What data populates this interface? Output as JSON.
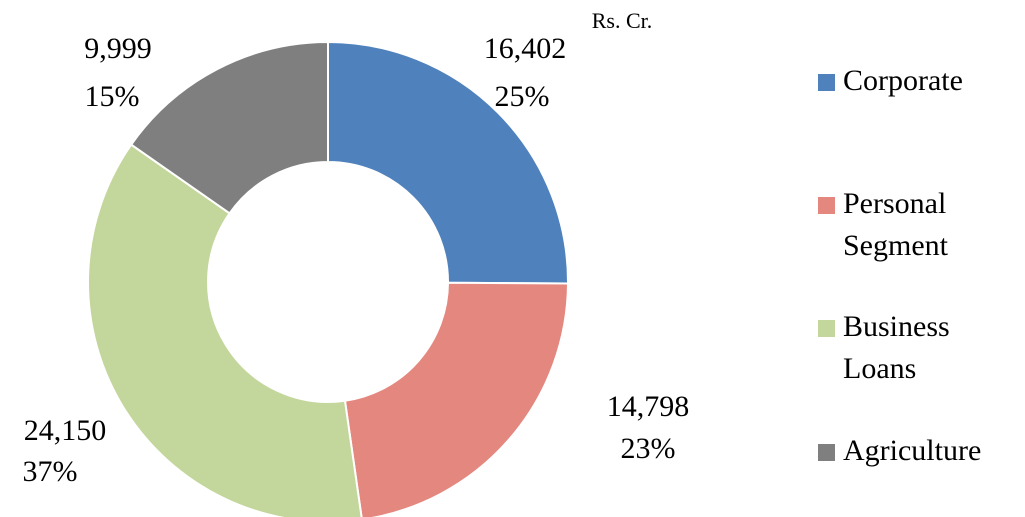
{
  "chart_data": {
    "type": "donut",
    "unit_label": "Rs. Cr.",
    "categories": [
      "Corporate",
      "Personal Segment",
      "Business Loans",
      "Agriculture"
    ],
    "values": [
      16402,
      14798,
      24150,
      9999
    ],
    "value_labels": [
      "16,402",
      "14,798",
      "24,150",
      "9,999"
    ],
    "percent_labels": [
      "25%",
      "23%",
      "37%",
      "15%"
    ],
    "colors": [
      "#4f81bd",
      "#e4877f",
      "#c3d69b",
      "#7f7f7f"
    ],
    "legend": "right"
  }
}
